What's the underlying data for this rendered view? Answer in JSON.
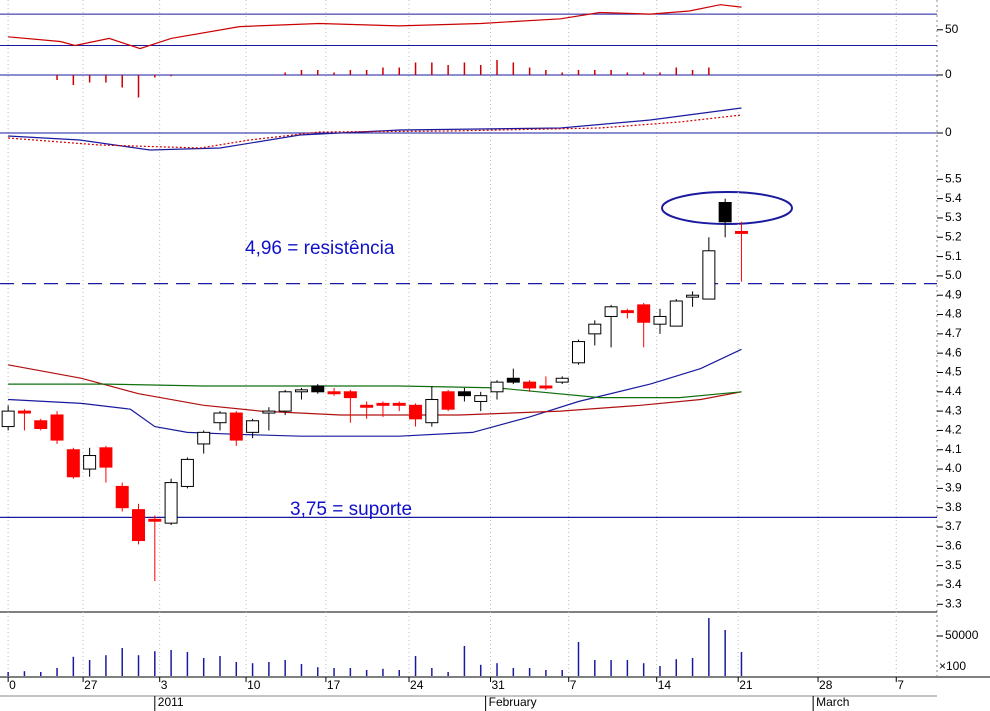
{
  "chart_data": [
    {
      "type": "line",
      "ylim": [
        14,
        88
      ],
      "yticks": [
        50
      ],
      "levels": [
        30,
        70
      ],
      "level_color": "#1a1aa0",
      "series": [
        {
          "color": "#cc0000",
          "style": "solid",
          "x": [
            0,
            3.2,
            4.1,
            6.2,
            8.1,
            10,
            14.2,
            19.1,
            24,
            29,
            33.9,
            36.3,
            39.4,
            41.8,
            43.7,
            45
          ],
          "values": [
            41,
            35,
            30,
            39,
            26,
            39,
            54,
            58,
            55,
            58,
            64,
            72,
            70,
            74,
            82,
            79
          ]
        }
      ]
    },
    {
      "type": "bar",
      "ylim": [
        -1,
        0.6
      ],
      "yticks": [
        0
      ],
      "color": "#cc0000",
      "zero_line": true,
      "values": [
        0,
        0,
        0,
        -0.2,
        -0.4,
        -0.3,
        -0.3,
        -0.5,
        -0.9,
        -0.1,
        -0.05,
        0,
        0,
        0,
        0,
        0,
        0,
        0.1,
        0.2,
        0.2,
        0.1,
        0.2,
        0.2,
        0.3,
        0.3,
        0.5,
        0.5,
        0.4,
        0.5,
        0.4,
        0.6,
        0.5,
        0.3,
        0.2,
        0.1,
        0.2,
        0.2,
        0.2,
        0.1,
        0.1,
        0.1,
        0.3,
        0.2,
        0.3,
        0,
        0
      ]
    },
    {
      "type": "line",
      "ylim": [
        -0.25,
        0.3
      ],
      "yticks": [
        0
      ],
      "zero_line": true,
      "series": [
        {
          "color": "#1a1aa0",
          "style": "solid",
          "x": [
            0,
            4.4,
            8.7,
            13,
            17.9,
            24,
            33.9,
            39.4,
            45
          ],
          "values": [
            -0.03,
            -0.07,
            -0.17,
            -0.15,
            -0.02,
            0.03,
            0.05,
            0.13,
            0.25
          ]
        },
        {
          "color": "#cc0000",
          "style": "dotted",
          "x": [
            0,
            5.6,
            11.8,
            14.8,
            19.1,
            27.1,
            36.3,
            41.2,
            45
          ],
          "values": [
            -0.05,
            -0.12,
            -0.15,
            -0.07,
            0.01,
            0.02,
            0.05,
            0.11,
            0.18
          ]
        }
      ]
    },
    {
      "type": "candlestick",
      "ylim": [
        3.26,
        5.6
      ],
      "yticks": [
        {
          "value": 3.3,
          "label": "3.3"
        },
        3.4,
        3.5,
        3.6,
        3.7,
        3.8,
        3.9,
        {
          "value": 4,
          "label": "4.0"
        },
        4.1,
        4.2,
        4.3,
        4.4,
        4.5,
        4.6,
        4.7,
        4.8,
        4.9,
        {
          "value": 5,
          "label": "5.0"
        },
        5.1,
        5.2,
        5.3,
        5.4,
        5.5
      ],
      "open": [
        4.22,
        4.3,
        4.25,
        4.28,
        4.1,
        4.0,
        4.11,
        3.91,
        3.79,
        3.74,
        3.72,
        3.91,
        4.13,
        4.24,
        4.29,
        4.19,
        4.29,
        4.3,
        4.4,
        4.43,
        4.4,
        4.4,
        4.33,
        4.34,
        4.34,
        4.33,
        4.24,
        4.4,
        4.4,
        4.35,
        4.4,
        4.47,
        4.45,
        4.43,
        4.45,
        4.55,
        4.7,
        4.79,
        4.82,
        4.85,
        4.75,
        4.74,
        4.89,
        4.88,
        5.28,
        5.23
      ],
      "high": [
        4.33,
        4.31,
        4.26,
        4.3,
        4.11,
        4.11,
        4.12,
        3.93,
        3.82,
        3.76,
        3.95,
        4.06,
        4.2,
        4.3,
        4.3,
        4.26,
        4.32,
        4.41,
        4.42,
        4.44,
        4.42,
        4.41,
        4.35,
        4.35,
        4.35,
        4.34,
        4.43,
        4.41,
        4.42,
        4.4,
        4.46,
        4.52,
        4.46,
        4.48,
        4.48,
        4.67,
        4.77,
        4.85,
        4.83,
        4.86,
        4.83,
        4.88,
        4.92,
        5.2,
        5.4,
        5.28
      ],
      "low": [
        4.2,
        4.2,
        4.2,
        4.13,
        3.95,
        3.96,
        3.93,
        3.78,
        3.61,
        3.42,
        3.71,
        3.9,
        4.08,
        4.2,
        4.12,
        4.16,
        4.2,
        4.28,
        4.36,
        4.39,
        4.38,
        4.24,
        4.26,
        4.27,
        4.3,
        4.22,
        4.22,
        4.3,
        4.35,
        4.3,
        4.36,
        4.44,
        4.4,
        4.41,
        4.44,
        4.54,
        4.64,
        4.63,
        4.78,
        4.63,
        4.7,
        4.74,
        4.84,
        4.88,
        5.2,
        4.97
      ],
      "close": [
        4.3,
        4.29,
        4.21,
        4.15,
        3.96,
        4.07,
        4.01,
        3.8,
        3.63,
        3.73,
        3.93,
        4.05,
        4.19,
        4.29,
        4.15,
        4.25,
        4.3,
        4.4,
        4.41,
        4.4,
        4.39,
        4.37,
        4.32,
        4.33,
        4.33,
        4.26,
        4.36,
        4.31,
        4.38,
        4.38,
        4.45,
        4.45,
        4.42,
        4.42,
        4.47,
        4.66,
        4.75,
        4.84,
        4.81,
        4.76,
        4.79,
        4.87,
        4.9,
        5.13,
        5.38,
        5.22
      ],
      "colors": [
        "#ffffff",
        "#ff0000",
        "#ff0000",
        "#ff0000",
        "#ff0000",
        "#ffffff",
        "#ff0000",
        "#ff0000",
        "#ff0000",
        "#ff0000",
        "#ffffff",
        "#ffffff",
        "#ffffff",
        "#ffffff",
        "#ff0000",
        "#ffffff",
        "#ffffff",
        "#ffffff",
        "#ffffff",
        "#000000",
        "#ff0000",
        "#ff0000",
        "#ff0000",
        "#ff0000",
        "#ff0000",
        "#ff0000",
        "#ffffff",
        "#ff0000",
        "#000000",
        "#ffffff",
        "#ffffff",
        "#000000",
        "#ff0000",
        "#ff0000",
        "#ffffff",
        "#ffffff",
        "#ffffff",
        "#ffffff",
        "#ff0000",
        "#ff0000",
        "#ffffff",
        "#ffffff",
        "#ffffff",
        "#ffffff",
        "#000000",
        "#ff0000"
      ],
      "overlays": [
        {
          "color": "#1a1aa0",
          "x": [
            0,
            4.5,
            7.5,
            9,
            11,
            14,
            18,
            24,
            28.5,
            32,
            35,
            39.4,
            42.5,
            45
          ],
          "values": [
            4.36,
            4.34,
            4.31,
            4.22,
            4.19,
            4.18,
            4.17,
            4.17,
            4.19,
            4.27,
            4.35,
            4.44,
            4.52,
            4.62
          ]
        },
        {
          "color": "#b01010",
          "x": [
            0,
            4.5,
            8,
            12,
            15.5,
            20.4,
            27.7,
            33.9,
            38.8,
            42.5,
            45
          ],
          "values": [
            4.54,
            4.47,
            4.39,
            4.33,
            4.3,
            4.28,
            4.28,
            4.3,
            4.33,
            4.36,
            4.4
          ]
        },
        {
          "color": "#107010",
          "x": [
            0,
            6,
            12,
            24,
            30,
            36.3,
            41.2,
            45
          ],
          "values": [
            4.44,
            4.44,
            4.43,
            4.43,
            4.42,
            4.37,
            4.37,
            4.4
          ]
        }
      ],
      "hlines": [
        {
          "value": 4.96,
          "style": "dashed",
          "color": "#1a1aa0"
        },
        {
          "value": 3.75,
          "style": "solid",
          "color": "#1a1aa0"
        }
      ],
      "annotations": [
        "4,96 = resistência",
        "3,75 = suporte"
      ]
    },
    {
      "type": "bar",
      "ylim": [
        0,
        75000
      ],
      "yticks": [
        50000
      ],
      "color": "#1a1aa0",
      "unit_note": "×100",
      "values": [
        5000,
        6000,
        5000,
        10000,
        24000,
        20000,
        26000,
        35000,
        26000,
        31000,
        32500,
        30000,
        22500,
        25000,
        17500,
        16000,
        17500,
        20000,
        15000,
        11000,
        10000,
        10000,
        7500,
        9000,
        7500,
        25000,
        10000,
        5000,
        37500,
        14000,
        16000,
        10000,
        10000,
        7500,
        7500,
        42500,
        20000,
        20000,
        20000,
        16000,
        12500,
        21000,
        22500,
        72500,
        57500,
        30000
      ],
      "xlim": [
        -0.5,
        57
      ],
      "xticks": [
        {
          "value": 0,
          "label": "0"
        },
        {
          "value": 4.6,
          "label": "27"
        },
        {
          "value": 9.3,
          "label": "3"
        },
        {
          "value": 14.6,
          "label": "10"
        },
        {
          "value": 19.5,
          "label": "17"
        },
        {
          "value": 24.6,
          "label": "24"
        },
        {
          "value": 29.6,
          "label": "31"
        },
        {
          "value": 34.4,
          "label": "7"
        },
        {
          "value": 39.8,
          "label": "14"
        },
        {
          "value": 44.8,
          "label": "21"
        },
        {
          "value": 49.7,
          "label": "28"
        },
        {
          "value": 54.5,
          "label": "7"
        }
      ],
      "month_ticks": [
        {
          "value": 9,
          "label": "2011"
        },
        {
          "value": 29.3,
          "label": "February"
        },
        {
          "value": 49.4,
          "label": "March"
        }
      ]
    }
  ]
}
